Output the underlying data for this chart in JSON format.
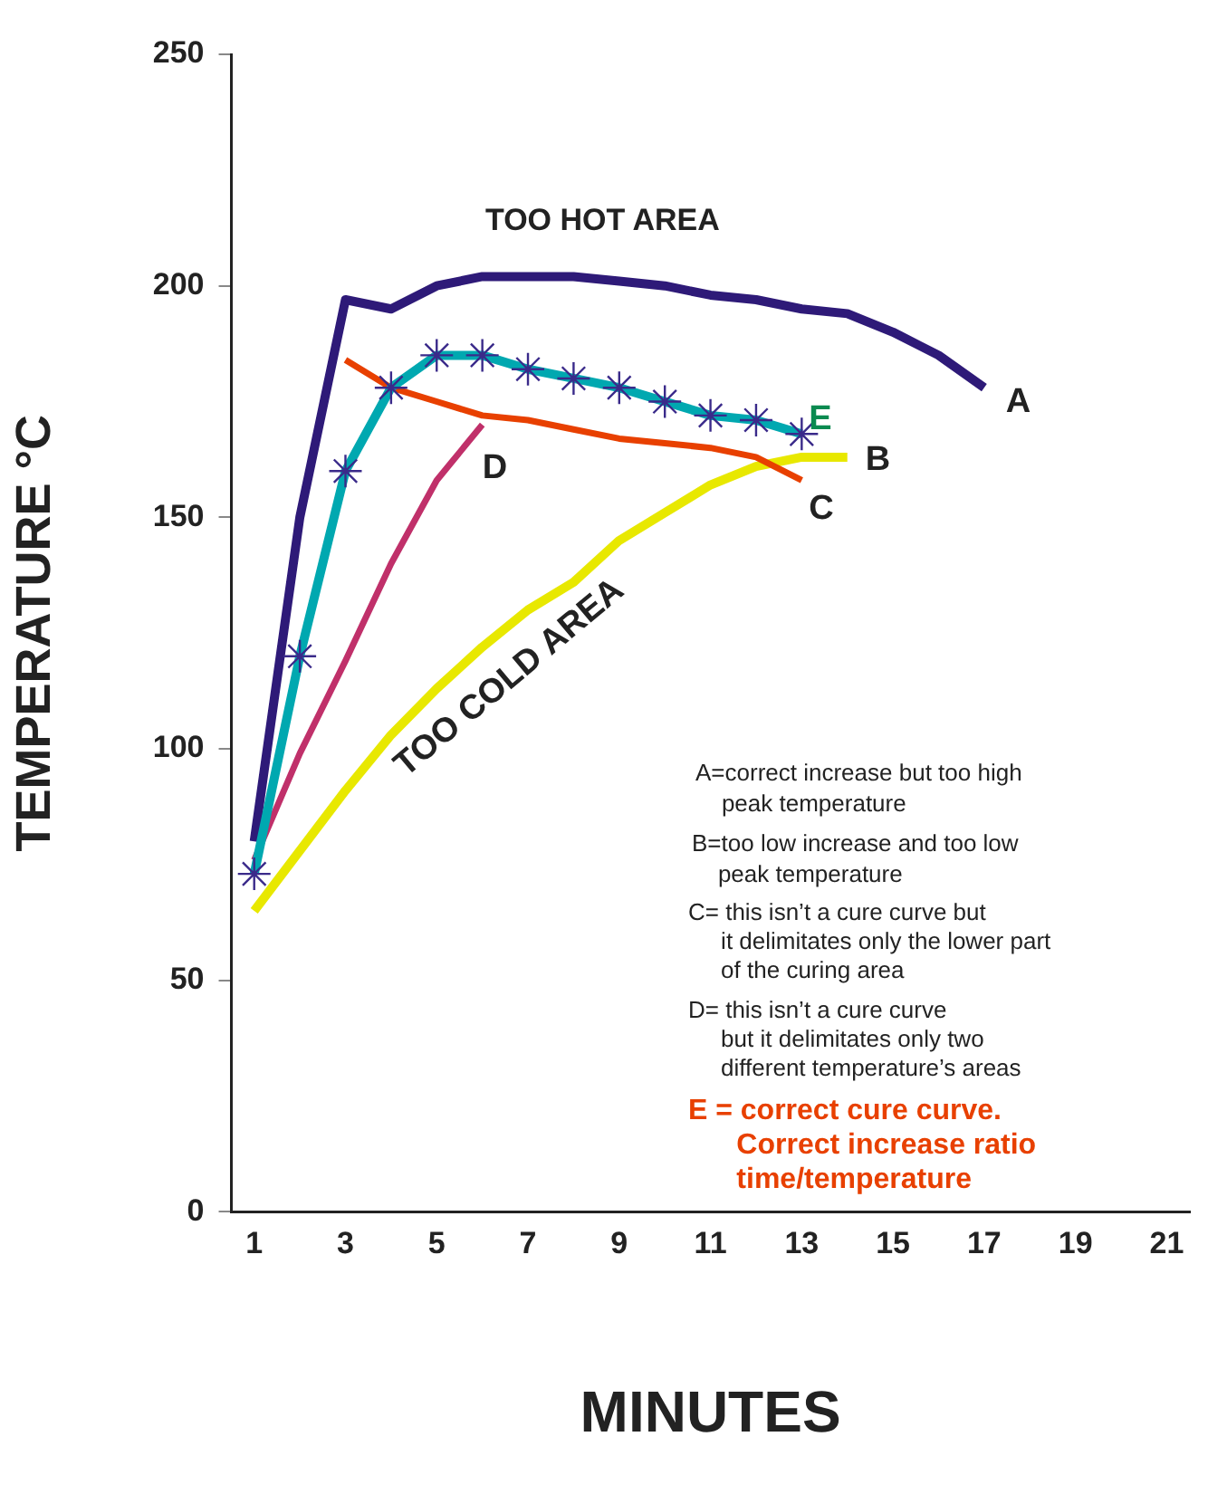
{
  "chart_data": {
    "type": "line",
    "xlabel": "MINUTES",
    "ylabel": "TEMPERATURE °C",
    "xlim": [
      0.5,
      21.5
    ],
    "xticks": [
      1,
      3,
      5,
      7,
      9,
      11,
      13,
      15,
      17,
      19,
      21
    ],
    "ylim": [
      0,
      250
    ],
    "yticks": [
      0,
      50,
      100,
      150,
      200,
      250
    ],
    "grid": false,
    "legend": false,
    "marker": "none",
    "line_style": "solid",
    "series": [
      {
        "name": "A",
        "color": "#2e1a78",
        "x": [
          1,
          2,
          3,
          4,
          5,
          6,
          7,
          8,
          9,
          10,
          11,
          12,
          13,
          14,
          15,
          16,
          17
        ],
        "values": [
          80,
          150,
          197,
          195,
          200,
          202,
          202,
          202,
          201,
          200,
          198,
          197,
          195,
          194,
          190,
          185,
          178
        ]
      },
      {
        "name": "B",
        "color": "#e8e800",
        "x": [
          1,
          2,
          3,
          4,
          5,
          6,
          7,
          8,
          9,
          10,
          11,
          12,
          13,
          14
        ],
        "values": [
          65,
          78,
          91,
          103,
          113,
          122,
          130,
          136,
          145,
          151,
          157,
          161,
          163,
          163
        ]
      },
      {
        "name": "C",
        "color": "#e84000",
        "x": [
          3,
          4,
          5,
          6,
          7,
          8,
          9,
          10,
          11,
          12,
          13
        ],
        "values": [
          184,
          178,
          175,
          172,
          171,
          169,
          167,
          166,
          165,
          163,
          158
        ]
      },
      {
        "name": "D",
        "color": "#c0306a",
        "x": [
          1,
          2,
          3,
          4,
          5,
          6
        ],
        "values": [
          76,
          99,
          119,
          140,
          158,
          170
        ]
      },
      {
        "name": "E",
        "color": "#00a8b0",
        "marker": "cross",
        "x": [
          1,
          2,
          3,
          4,
          5,
          6,
          7,
          8,
          9,
          10,
          11,
          12,
          13
        ],
        "values": [
          73,
          120,
          160,
          178,
          185,
          185,
          182,
          180,
          178,
          175,
          172,
          171,
          168
        ]
      }
    ],
    "annotations": [
      "TOO HOT AREA",
      "TOO COLD AREA",
      "A=correct increase but too high\n    peak temperature",
      "B=too low increase and too low\n    peak temperature",
      "C= this isn’t a cure curve but\n     it delimitates only the lower part\n     of the curing area",
      "D= this isn’t a cure curve\n     but it delimitates only two\n     different temperature’s areas",
      "E = correct cure curve.\n      Correct increase ratio\n      time/temperature"
    ]
  }
}
